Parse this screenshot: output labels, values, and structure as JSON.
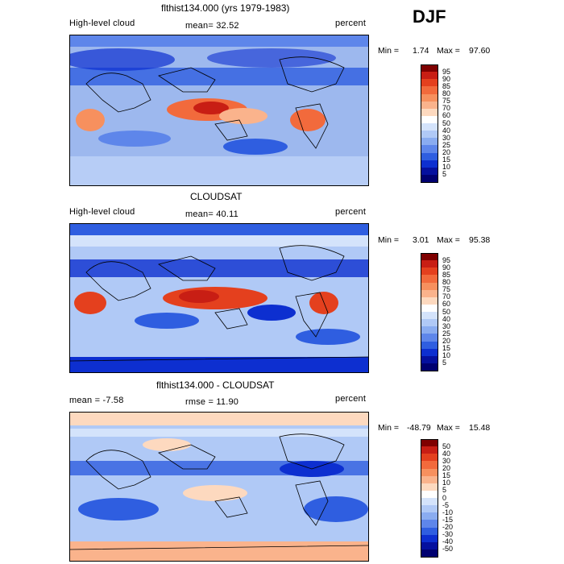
{
  "season": "DJF",
  "panels": [
    {
      "title": "flthist134.000 (yrs 1979-1983)",
      "left_label": "High-level cloud",
      "mid_label": "mean=  32.52",
      "right_label": "percent",
      "min_label": "Min =",
      "min_value": "1.74",
      "max_label": "Max =",
      "max_value": "97.60",
      "colorbar": {
        "labels": [
          "95",
          "90",
          "85",
          "80",
          "75",
          "70",
          "60",
          "50",
          "40",
          "30",
          "25",
          "20",
          "15",
          "10",
          "5"
        ],
        "colors": [
          "#7f0000",
          "#c81e14",
          "#e4401e",
          "#f26a3c",
          "#f7905e",
          "#fab38c",
          "#fdd9bf",
          "#ffffff",
          "#d4e3fb",
          "#b0c9f6",
          "#8aacf0",
          "#5e86ea",
          "#2f5ee0",
          "#0d2fd0",
          "#05109e",
          "#000070"
        ]
      }
    },
    {
      "title": "CLOUDSAT",
      "left_label": "High-level cloud",
      "mid_label": "mean=  40.11",
      "right_label": "percent",
      "min_label": "Min =",
      "min_value": "3.01",
      "max_label": "Max =",
      "max_value": "95.38",
      "colorbar": {
        "labels": [
          "95",
          "90",
          "85",
          "80",
          "75",
          "70",
          "60",
          "50",
          "40",
          "30",
          "25",
          "20",
          "15",
          "10",
          "5"
        ],
        "colors": [
          "#7f0000",
          "#c81e14",
          "#e4401e",
          "#f26a3c",
          "#f7905e",
          "#fab38c",
          "#fdd9bf",
          "#ffffff",
          "#d4e3fb",
          "#b0c9f6",
          "#8aacf0",
          "#5e86ea",
          "#2f5ee0",
          "#0d2fd0",
          "#05109e",
          "#000070"
        ]
      }
    },
    {
      "title": "flthist134.000 - CLOUDSAT",
      "left_label": "mean =   -7.58",
      "mid_label": "rmse =   11.90",
      "right_label": "percent",
      "min_label": "Min =",
      "min_value": "-48.79",
      "max_label": "Max =",
      "max_value": "15.48",
      "colorbar": {
        "labels": [
          "50",
          "40",
          "30",
          "20",
          "15",
          "10",
          "5",
          "0",
          "-5",
          "-10",
          "-15",
          "-20",
          "-30",
          "-40",
          "-50"
        ],
        "colors": [
          "#7f0000",
          "#c81e14",
          "#e4401e",
          "#f26a3c",
          "#f7905e",
          "#fab38c",
          "#fdd9bf",
          "#ffffff",
          "#d4e3fb",
          "#b0c9f6",
          "#8aacf0",
          "#5e86ea",
          "#2f5ee0",
          "#0d2fd0",
          "#05109e",
          "#000070"
        ]
      }
    }
  ]
}
